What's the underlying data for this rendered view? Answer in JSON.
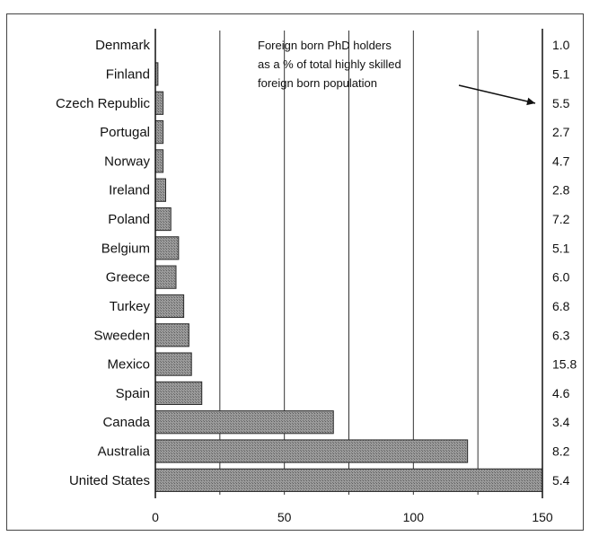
{
  "chart_data": {
    "type": "bar",
    "orientation": "horizontal",
    "categories": [
      "Denmark",
      "Finland",
      "Czech Republic",
      "Portugal",
      "Norway",
      "Ireland",
      "Poland",
      "Belgium",
      "Greece",
      "Turkey",
      "Sweeden",
      "Mexico",
      "Spain",
      "Canada",
      "Australia",
      "United States"
    ],
    "values": [
      0,
      1,
      3,
      3,
      3,
      4,
      6,
      9,
      8,
      11,
      13,
      14,
      18,
      69,
      121,
      150
    ],
    "right_labels": [
      "1.0",
      "5.1",
      "5.5",
      "2.7",
      "4.7",
      "2.8",
      "7.2",
      "5.1",
      "6.0",
      "6.8",
      "6.3",
      "15.8",
      "4.6",
      "3.4",
      "8.2",
      "5.4"
    ],
    "xlim": [
      0,
      150
    ],
    "xticks": [
      0,
      50,
      100,
      150
    ],
    "vgrid": [
      25,
      50,
      75,
      100,
      125
    ],
    "annotation": {
      "lines": [
        "Foreign born PhD holders",
        "as a % of total highly skilled",
        "foreign born population"
      ]
    },
    "bar_color": "#8c8c8c",
    "grid_color": "#333333"
  }
}
